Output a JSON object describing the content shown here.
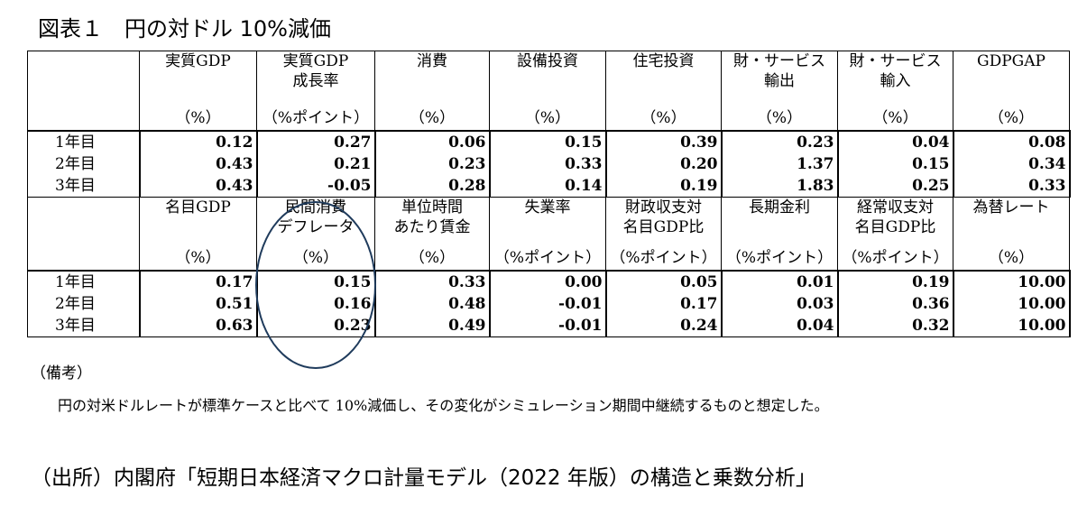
{
  "title": "図表１　円の対ドル 10%減価",
  "table1": {
    "headers": [
      {
        "label": "実質GDP",
        "label2": "",
        "unit": "（%）"
      },
      {
        "label": "実質GDP",
        "label2": "成長率",
        "unit": "（%ポイント）"
      },
      {
        "label": "消費",
        "label2": "",
        "unit": "（%）"
      },
      {
        "label": "設備投資",
        "label2": "",
        "unit": "（%）"
      },
      {
        "label": "住宅投資",
        "label2": "",
        "unit": "（%）"
      },
      {
        "label": "財・サービス",
        "label2": "輸出",
        "unit": "（%）"
      },
      {
        "label": "財・サービス",
        "label2": "輸入",
        "unit": "（%）"
      },
      {
        "label": "GDPGAP",
        "label2": "",
        "unit": "（%）"
      }
    ],
    "rows": [
      {
        "year": "1年目",
        "values": [
          "0.12",
          "0.27",
          "0.06",
          "0.15",
          "0.39",
          "0.23",
          "0.04",
          "0.08"
        ]
      },
      {
        "year": "2年目",
        "values": [
          "0.43",
          "0.21",
          "0.23",
          "0.33",
          "0.20",
          "1.37",
          "0.15",
          "0.34"
        ]
      },
      {
        "year": "3年目",
        "values": [
          "0.43",
          "-0.05",
          "0.28",
          "0.14",
          "0.19",
          "1.83",
          "0.25",
          "0.33"
        ]
      }
    ]
  },
  "table2": {
    "headers": [
      {
        "label": "名目GDP",
        "label2": "",
        "unit": "（%）"
      },
      {
        "label": "民間消費",
        "label2": "デフレータ",
        "unit": "（%）"
      },
      {
        "label": "単位時間",
        "label2": "あたり賃金",
        "unit": "（%）"
      },
      {
        "label": "失業率",
        "label2": "",
        "unit": "（%ポイント）"
      },
      {
        "label": "財政収支対",
        "label2": "名目GDP比",
        "unit": "（%ポイント）"
      },
      {
        "label": "長期金利",
        "label2": "",
        "unit": "（%ポイント）"
      },
      {
        "label": "経常収支対",
        "label2": "名目GDP比",
        "unit": "（%ポイント）"
      },
      {
        "label": "為替レート",
        "label2": "",
        "unit": "（%）"
      }
    ],
    "rows": [
      {
        "year": "1年目",
        "values": [
          "0.17",
          "0.15",
          "0.33",
          "0.00",
          "0.05",
          "0.01",
          "0.19",
          "10.00"
        ]
      },
      {
        "year": "2年目",
        "values": [
          "0.51",
          "0.16",
          "0.48",
          "-0.01",
          "0.17",
          "0.03",
          "0.36",
          "10.00"
        ]
      },
      {
        "year": "3年目",
        "values": [
          "0.63",
          "0.23",
          "0.49",
          "-0.01",
          "0.24",
          "0.04",
          "0.32",
          "10.00"
        ]
      }
    ]
  },
  "note": {
    "label": "（備考）",
    "text": "円の対米ドルレートが標準ケースと比べて 10%減価し、その変化がシミュレーション期間中継続するものと想定した。"
  },
  "source": "（出所）内閣府「短期日本経済マクロ計量モデル（2022 年版）の構造と乗数分析」"
}
